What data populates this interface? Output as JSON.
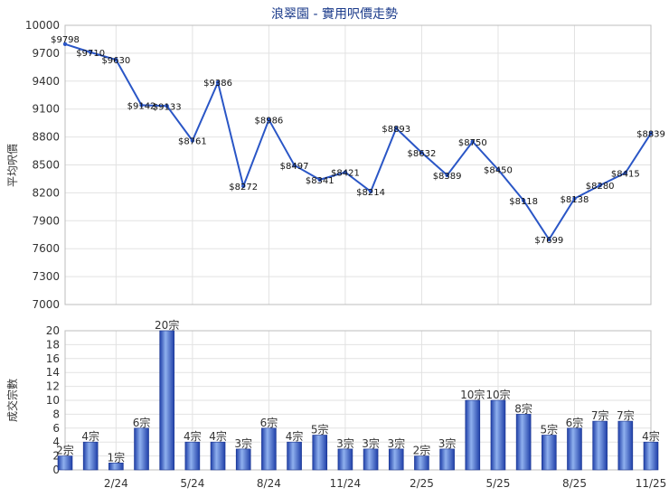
{
  "chart_data": [
    {
      "type": "line",
      "title": "浪翠園 - 實用呎價走勢",
      "ylabel": "平均呎價",
      "ylim": [
        7000,
        10000
      ],
      "yticks": [
        7000,
        7300,
        7600,
        7900,
        8200,
        8500,
        8800,
        9100,
        9400,
        9700,
        10000
      ],
      "xtick_labels": [
        "2/24",
        "5/24",
        "8/24",
        "11/24",
        "2/25",
        "5/25",
        "8/25",
        "11/25"
      ],
      "grid": true,
      "color": "#2a56c6",
      "values": [
        9798,
        9710,
        9630,
        9142,
        9133,
        8761,
        9386,
        8272,
        8986,
        8497,
        8341,
        8421,
        8214,
        8893,
        8632,
        8389,
        8750,
        8450,
        8118,
        7699,
        8138,
        8280,
        8415,
        8839
      ],
      "labels": [
        "$9798",
        "$9710",
        "$9630",
        "$9142",
        "$9133",
        "$8761",
        "$9386",
        "$8272",
        "$8986",
        "$8497",
        "$8341",
        "$8421",
        "$8214",
        "$8893",
        "$8632",
        "$8389",
        "$8750",
        "$8450",
        "$8118",
        "$7699",
        "$8138",
        "$8280",
        "$8415",
        "$8839"
      ]
    },
    {
      "type": "bar",
      "ylabel": "成交宗數",
      "ylim": [
        0,
        20
      ],
      "yticks": [
        0,
        2,
        4,
        6,
        8,
        10,
        12,
        14,
        16,
        18,
        20
      ],
      "xtick_labels": [
        "2/24",
        "5/24",
        "8/24",
        "11/24",
        "2/25",
        "5/25",
        "8/25",
        "11/25"
      ],
      "grid": true,
      "color": "#2a56c6",
      "values": [
        2,
        4,
        1,
        6,
        20,
        4,
        4,
        3,
        6,
        4,
        5,
        3,
        3,
        3,
        2,
        3,
        10,
        10,
        8,
        5,
        6,
        7,
        7,
        4
      ],
      "labels": [
        "2宗",
        "4宗",
        "1宗",
        "6宗",
        "20宗",
        "4宗",
        "4宗",
        "3宗",
        "6宗",
        "4宗",
        "5宗",
        "3宗",
        "3宗",
        "3宗",
        "2宗",
        "3宗",
        "10宗",
        "10宗",
        "8宗",
        "5宗",
        "6宗",
        "7宗",
        "7宗",
        "4宗"
      ]
    }
  ]
}
